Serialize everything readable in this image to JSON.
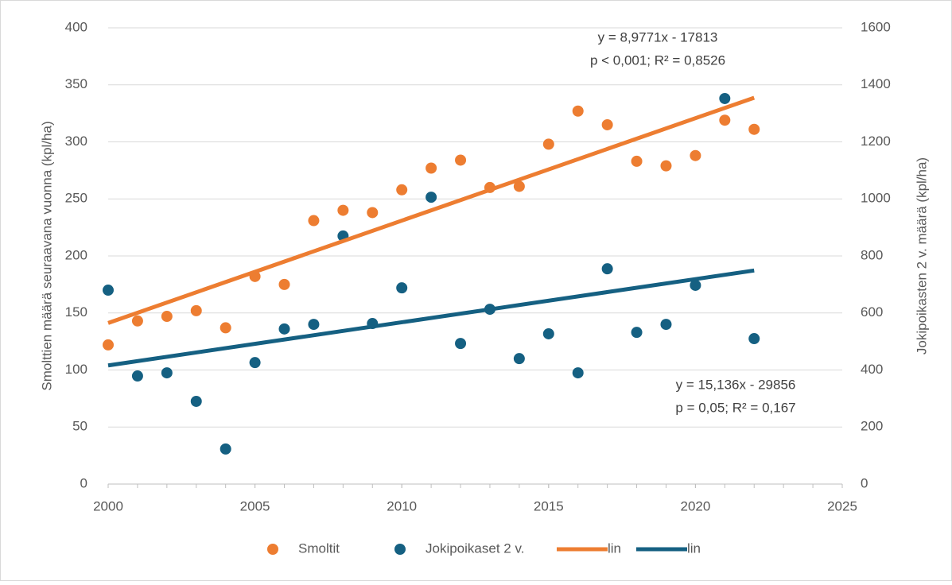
{
  "chart_data": {
    "type": "scatter",
    "xlim": [
      2000,
      2025
    ],
    "xticks": [
      2000,
      2005,
      2010,
      2015,
      2020,
      2025
    ],
    "ylim": [
      0,
      400
    ],
    "yticks": [
      0,
      50,
      100,
      150,
      200,
      250,
      300,
      350,
      400
    ],
    "y2lim": [
      0,
      1600
    ],
    "y2ticks": [
      0,
      200,
      400,
      600,
      800,
      1000,
      1200,
      1400,
      1600
    ],
    "ylabel": "Smolttien määrä seuraavana vuonna (kpl/ha)",
    "y2label": "Jokipoikasten 2 v. määrä (kpl/ha)",
    "grid": true,
    "legend": "bottom",
    "annotations": [
      {
        "lines": [
          "y = 8,9771x - 17813",
          "p < 0,001; R² = 0,8526"
        ]
      },
      {
        "lines": [
          "y = 15,136x - 29856",
          "p = 0,05; R² = 0,167"
        ]
      }
    ],
    "series": [
      {
        "name": "Smoltit",
        "color": "#ed7d31",
        "mode": "markers",
        "x": [
          2000,
          2001,
          2002,
          2003,
          2004,
          2005,
          2006,
          2007,
          2008,
          2009,
          2010,
          2011,
          2012,
          2013,
          2014,
          2015,
          2016,
          2017,
          2018,
          2019,
          2020,
          2021,
          2022
        ],
        "values": [
          122,
          143,
          147,
          152,
          137,
          182,
          175,
          231,
          240,
          238,
          258,
          277,
          284,
          260,
          261,
          298,
          327,
          315,
          283,
          279,
          288,
          319,
          311
        ]
      },
      {
        "name": "Jokipoikaset 2 v.",
        "color": "#156082",
        "mode": "markers",
        "axis": "y2",
        "x": [
          2000,
          2001,
          2002,
          2003,
          2004,
          2005,
          2006,
          2007,
          2008,
          2009,
          2010,
          2011,
          2012,
          2013,
          2014,
          2015,
          2016,
          2017,
          2018,
          2019,
          2020,
          2021,
          2022
        ],
        "values": [
          680,
          379,
          390,
          290,
          123,
          426,
          544,
          560,
          870,
          563,
          688,
          1006,
          493,
          613,
          440,
          527,
          390,
          755,
          532,
          560,
          697,
          1352,
          510
        ]
      },
      {
        "name": "lin",
        "color": "#ed7d31",
        "mode": "line",
        "x": [
          2000,
          2022
        ],
        "values": [
          141.2,
          338.7
        ]
      },
      {
        "name": "lin",
        "color": "#156082",
        "mode": "line",
        "axis": "y2",
        "x": [
          2000,
          2022
        ],
        "values": [
          416,
          749
        ]
      }
    ]
  }
}
